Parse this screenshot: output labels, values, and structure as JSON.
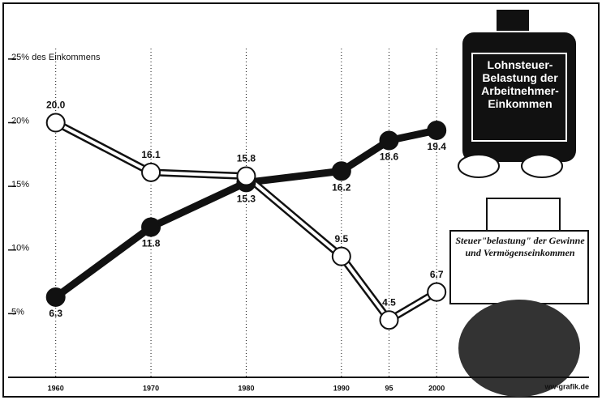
{
  "chart_data": {
    "type": "line",
    "x": [
      1960,
      1970,
      1980,
      1990,
      1995,
      2000
    ],
    "xlim": [
      1955,
      2016
    ],
    "xticks": [
      1960,
      1970,
      1980,
      1990,
      {
        "value": 1995,
        "label": "95"
      },
      2000
    ],
    "ylim": [
      0,
      29
    ],
    "yticks": [
      {
        "value": 5,
        "label": "5%"
      },
      {
        "value": 10,
        "label": "10%"
      },
      {
        "value": 15,
        "label": "15%"
      },
      {
        "value": 20,
        "label": "20%"
      },
      {
        "value": 25,
        "label": "25% des Einkommens"
      }
    ],
    "grid": "x",
    "series": [
      {
        "name": "Lohnsteuer-Belastung der Arbeitnehmer-Einkommen",
        "color": "#111111",
        "marker_fill": "#111111",
        "values": [
          6.3,
          11.8,
          15.3,
          16.2,
          18.6,
          19.4
        ],
        "value_labels": [
          "6.3",
          "11.8",
          "15.3",
          "16.2",
          "18.6",
          "19.4"
        ]
      },
      {
        "name": "Steuer\"belastung\" der Gewinne und Vermögenseinkommen",
        "color": "#111111",
        "marker_fill": "#ffffff",
        "values": [
          20.0,
          16.1,
          15.8,
          9.5,
          4.5,
          6.7
        ],
        "value_labels": [
          "20.0",
          "16.1",
          "15.8",
          "9.5",
          "4.5",
          "6.7"
        ]
      }
    ],
    "source": "ww-grafik.de"
  }
}
